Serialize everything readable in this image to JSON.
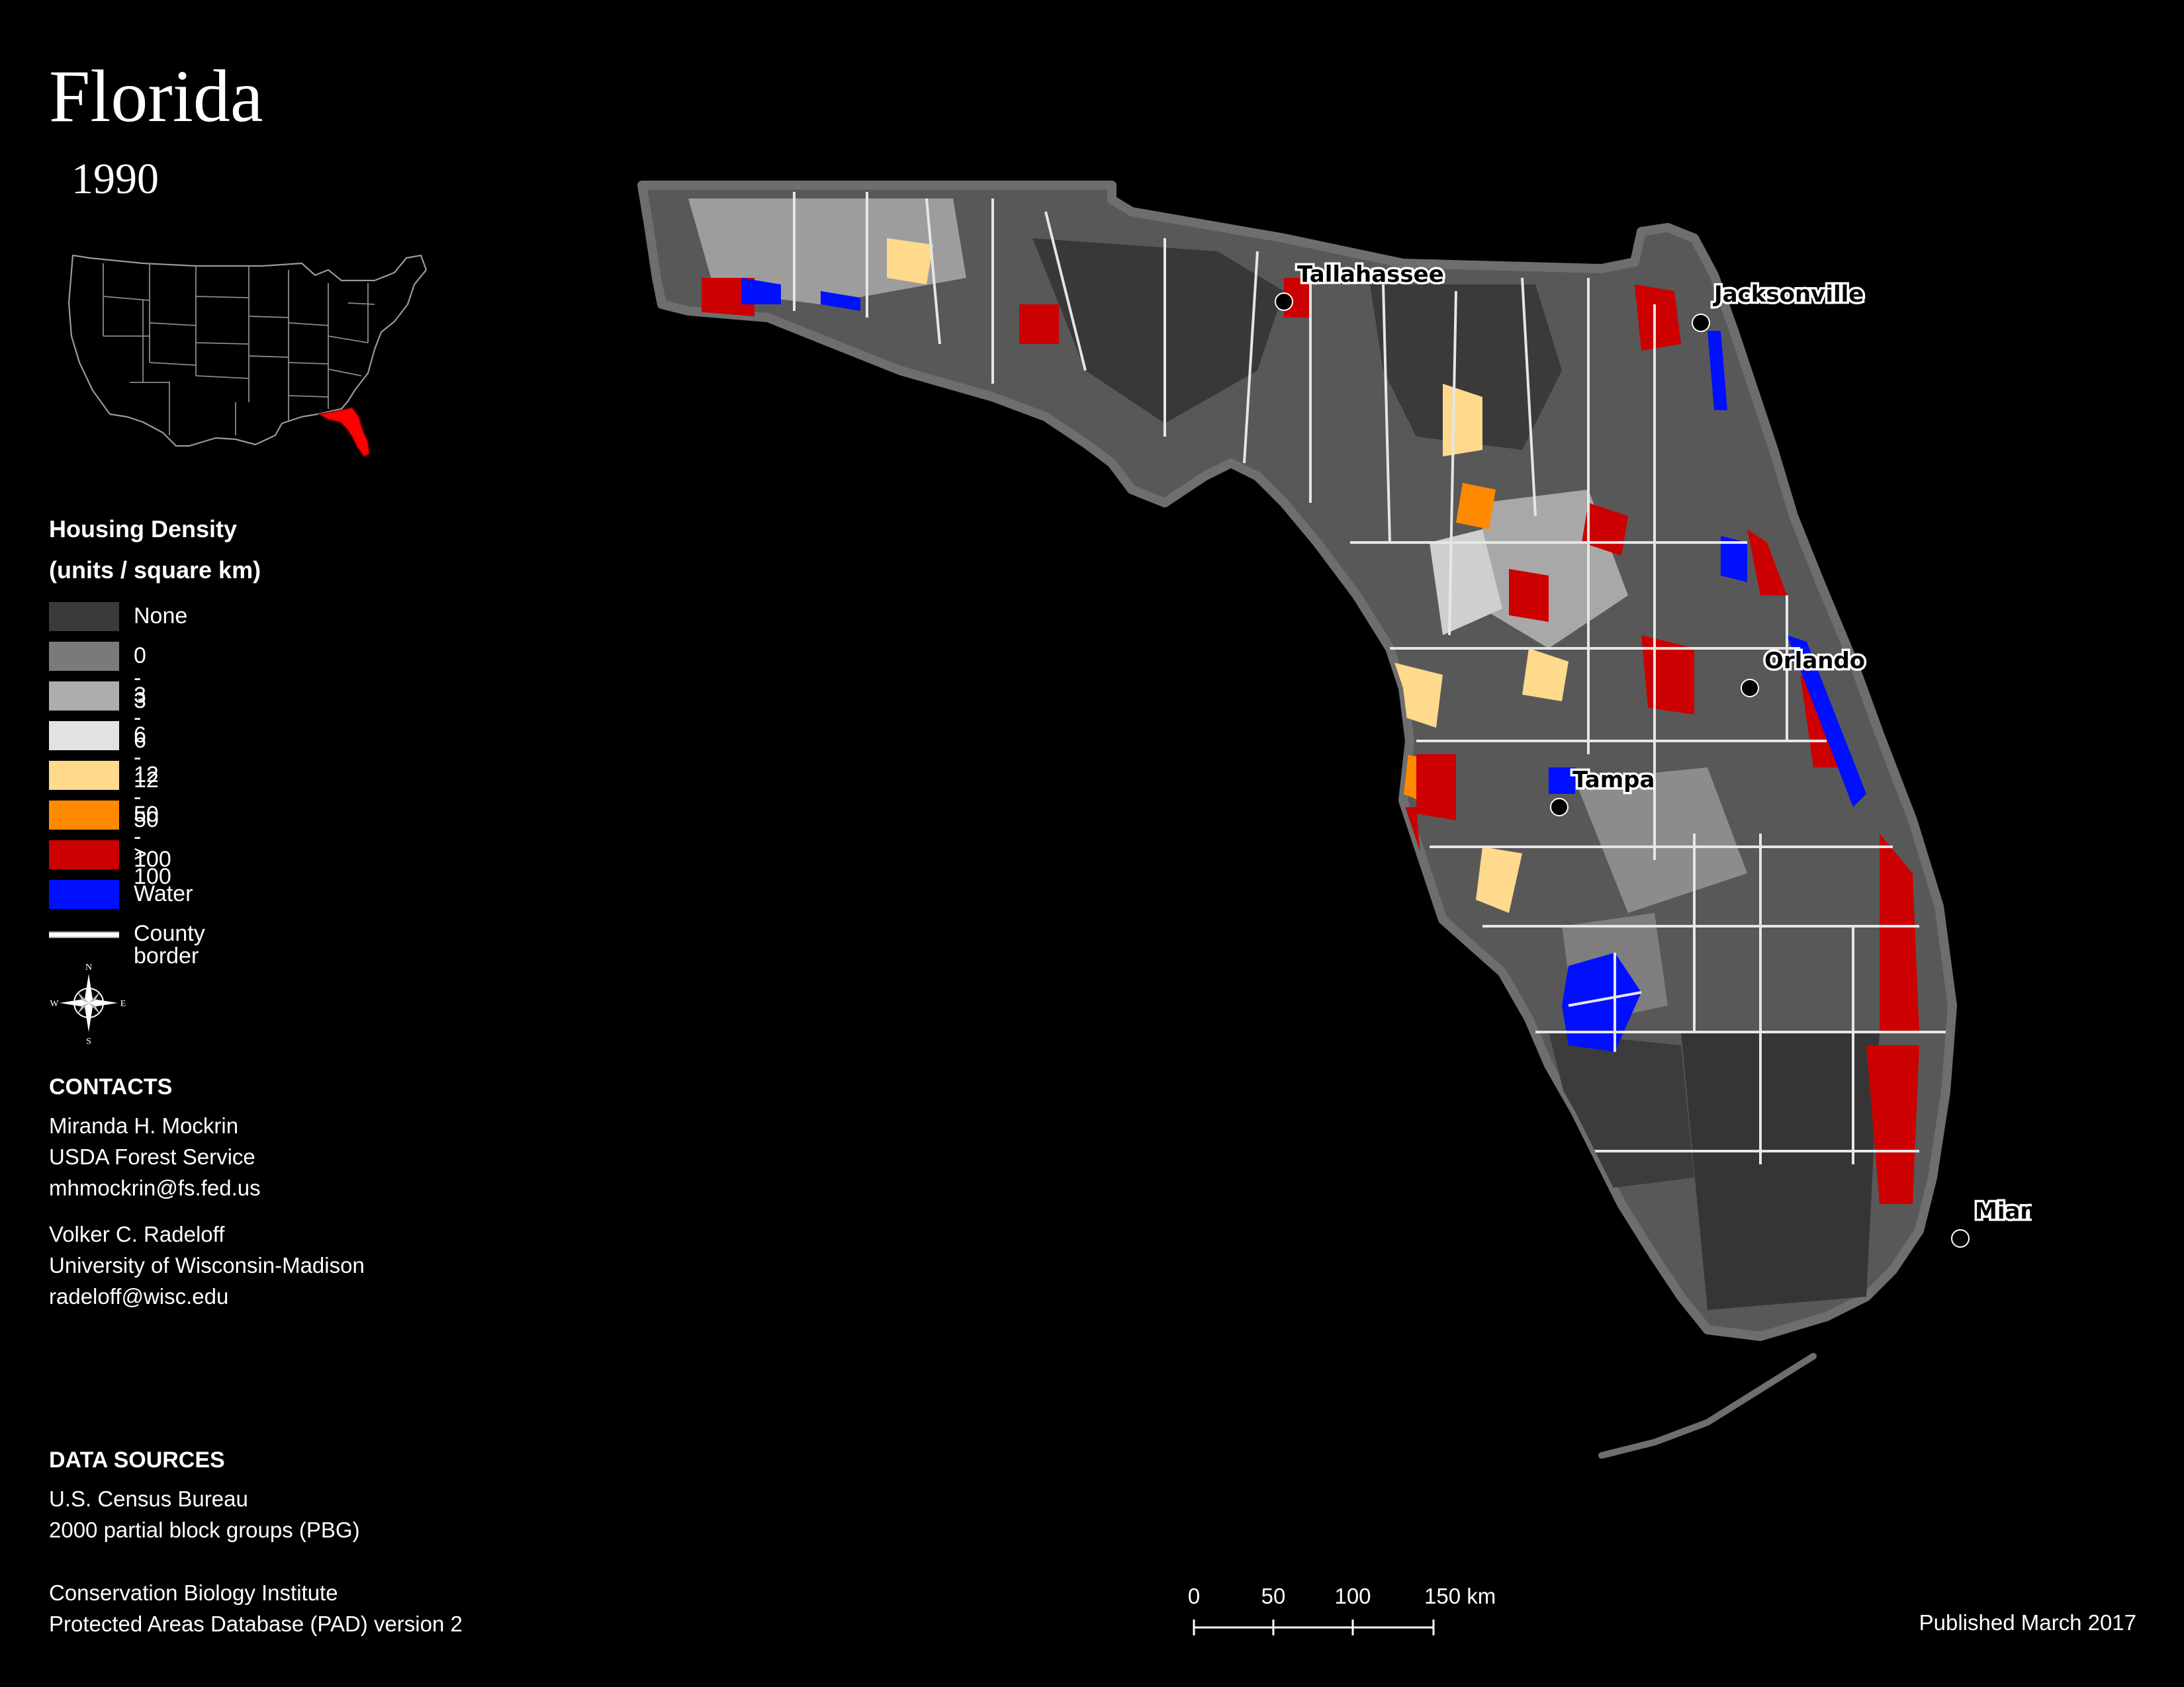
{
  "title": "Florida",
  "year": "1990",
  "legend": {
    "title": "Housing Density",
    "units": "(units / square km)",
    "items": [
      {
        "label": "None",
        "color": "#3a3a3a"
      },
      {
        "label": "0 - 3",
        "color": "#7a7a7a"
      },
      {
        "label": "3 - 6",
        "color": "#adadad"
      },
      {
        "label": "6 - 12",
        "color": "#e2e2e2"
      },
      {
        "label": "12 - 50",
        "color": "#ffd98c"
      },
      {
        "label": "50 - 100",
        "color": "#ff8a00"
      },
      {
        "label": "> 100",
        "color": "#cc0000"
      },
      {
        "label": "Water",
        "color": "#0010ff"
      }
    ],
    "border_label": "County border"
  },
  "compass": {
    "n": "N",
    "s": "S",
    "e": "E",
    "w": "W"
  },
  "contacts": {
    "heading": "CONTACTS",
    "person1": [
      "Miranda H. Mockrin",
      "USDA Forest Service",
      "mhmockrin@fs.fed.us"
    ],
    "person2": [
      "Volker C. Radeloff",
      "University of Wisconsin-Madison",
      "radeloff@wisc.edu"
    ]
  },
  "sources": {
    "heading": "DATA SOURCES",
    "group1": [
      "U.S. Census Bureau",
      "2000 partial block groups (PBG)"
    ],
    "group2": [
      "Conservation Biology Institute",
      "Protected Areas Database (PAD) version 2"
    ]
  },
  "scale": {
    "ticks": [
      "0",
      "50",
      "100",
      "150 km"
    ]
  },
  "published": "Published March 2017",
  "cities": [
    {
      "name": "Tallahassee"
    },
    {
      "name": "Jacksonville"
    },
    {
      "name": "Orlando"
    },
    {
      "name": "Tampa"
    },
    {
      "name": "Miami"
    }
  ],
  "inset_highlight_color": "#ff0000"
}
